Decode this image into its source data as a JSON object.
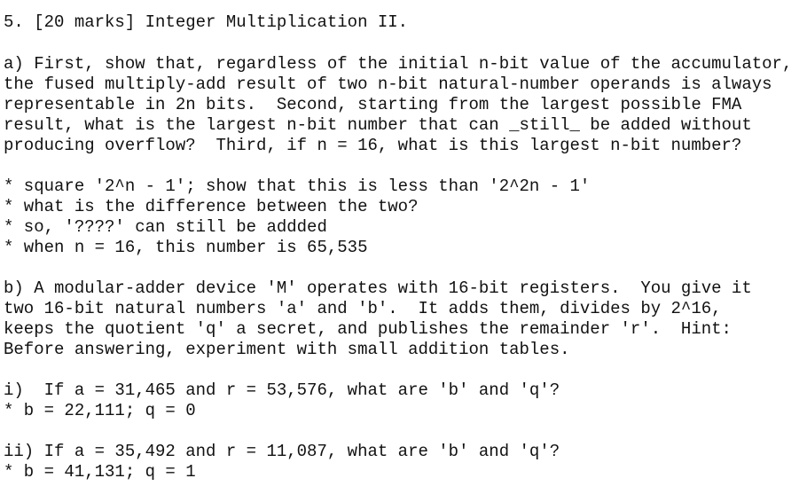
{
  "title": "5. [20 marks] Integer Multiplication II.",
  "part_a": {
    "lines": [
      "a) First, show that, regardless of the initial n-bit value of the accumulator,",
      "the fused multiply-add result of two n-bit natural-number operands is always",
      "representable in 2n bits.  Second, starting from the largest possible FMA",
      "result, what is the largest n-bit number that can _still_ be added without",
      "producing overflow?  Third, if n = 16, what is this largest n-bit number?"
    ],
    "notes": [
      "* square '2^n - 1'; show that this is less than '2^2n - 1'",
      "* what is the difference between the two?",
      "* so, '????' can still be addded",
      "* when n = 16, this number is 65,535"
    ]
  },
  "part_b": {
    "lines": [
      "b) A modular-adder device 'M' operates with 16-bit registers.  You give it",
      "two 16-bit natural numbers 'a' and 'b'.  It adds them, divides by 2^16,",
      "keeps the quotient 'q' a secret, and publishes the remainder 'r'.  Hint:",
      "Before answering, experiment with small addition tables."
    ]
  },
  "questions": [
    {
      "question": "i)  If a = 31,465 and r = 53,576, what are 'b' and 'q'?",
      "answer": "* b = 22,111; q = 0"
    },
    {
      "question": "ii) If a = 35,492 and r = 11,087, what are 'b' and 'q'?",
      "answer": "* b = 41,131; q = 1"
    }
  ]
}
